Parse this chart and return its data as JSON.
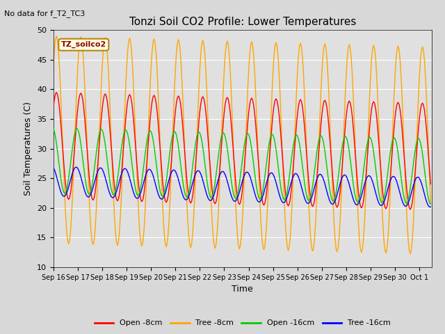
{
  "title": "Tonzi Soil CO2 Profile: Lower Temperatures",
  "top_left_text": "No data for f_T2_TC3",
  "annotation_text": "TZ_soilco2",
  "xlabel": "Time",
  "ylabel": "Soil Temperatures (C)",
  "ylim": [
    10,
    50
  ],
  "yticks": [
    10,
    15,
    20,
    25,
    30,
    35,
    40,
    45,
    50
  ],
  "n_days": 15.5,
  "colors": {
    "open_8cm": "#ff0000",
    "tree_8cm": "#ffa500",
    "open_16cm": "#00cc00",
    "tree_16cm": "#0000ff"
  },
  "legend_labels": [
    "Open -8cm",
    "Tree -8cm",
    "Open -16cm",
    "Tree -16cm"
  ],
  "fig_bg": "#d8d8d8",
  "plot_bg": "#e0e0e0",
  "open_8cm": {
    "base": 30.5,
    "amplitude": 9.0,
    "phase": 0.8
  },
  "tree_8cm": {
    "base": 31.5,
    "amplitude": 17.5,
    "phase": 0.8
  },
  "open_16cm": {
    "base": 28.0,
    "amplitude": 5.5,
    "phase": 1.8
  },
  "tree_16cm": {
    "base": 24.5,
    "amplitude": 2.5,
    "phase": 2.0
  },
  "trend": -0.12
}
